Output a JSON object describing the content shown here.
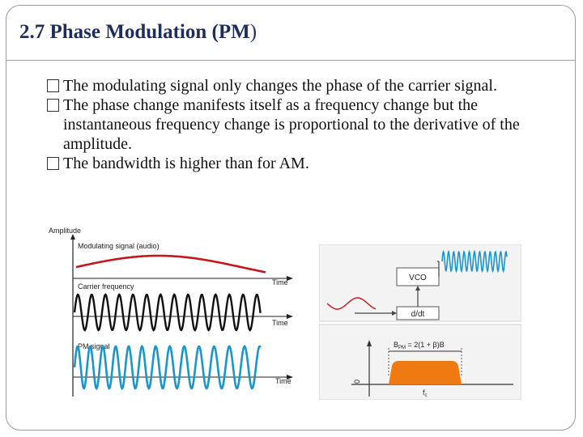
{
  "slide": {
    "title_main": "2.7  Phase Modulation (PM",
    "title_paren": ")",
    "bullets": [
      "The modulating signal only changes the phase of the carrier signal.",
      "The phase change manifests itself as a frequency change but the instantaneous frequency change is proportional to the derivative of the amplitude.",
      "The bandwidth is higher than for AM."
    ]
  },
  "figure_left": {
    "amplitude_label": "Amplitude",
    "modulating_label": "Modulating signal (audio)",
    "carrier_label": "Carrier frequency",
    "pm_label": "PM signal",
    "time_label": "Time",
    "colors": {
      "modulating": "#c4161c",
      "carrier": "#111111",
      "pm": "#1a96cc"
    }
  },
  "figure_right": {
    "vco_label": "VCO",
    "ddt_label": "d/dt",
    "bandwidth_formula": "B",
    "bandwidth_sub": "PM",
    "bandwidth_rest": " = 2(1 + β)B",
    "zero_label": "0",
    "fc_label": "f",
    "fc_sub": "c",
    "colors": {
      "spectrum": "#f07a12",
      "wave": "#1a96cc",
      "input": "#c4161c"
    }
  }
}
